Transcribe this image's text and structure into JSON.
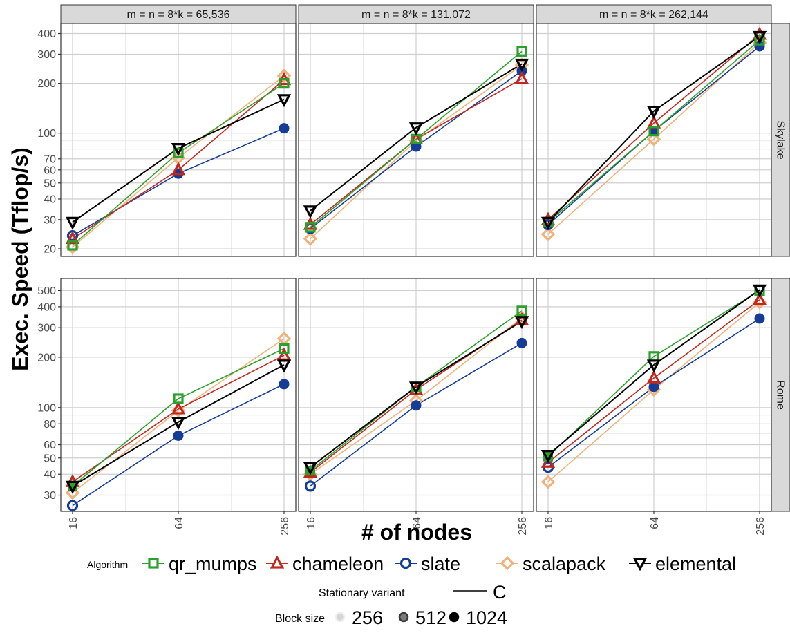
{
  "chart_data": {
    "type": "line",
    "ylabel": "Exec. Speed (Tflop/s)",
    "xlabel": "# of nodes",
    "x": [
      16,
      64,
      256
    ],
    "x_tick_labels": [
      "16",
      "64",
      "256"
    ],
    "x_scale": "log2",
    "y_scale": "log10",
    "grid": true,
    "legend_position": "bottom",
    "columns": [
      "m = n = 8*k =  65,536",
      "m = n = 8*k = 131,072",
      "m = n = 8*k = 262,144"
    ],
    "rows": [
      "Skylake",
      "Rome"
    ],
    "row_ylim": [
      [
        18,
        460
      ],
      [
        24,
        590
      ]
    ],
    "row_y_ticks": [
      {
        "values": [
          20,
          30,
          40,
          50,
          60,
          70,
          100,
          200,
          300,
          400
        ],
        "labels": [
          "20",
          "30",
          "40",
          "50",
          "60",
          "70",
          "100",
          "200",
          "300",
          "400"
        ]
      },
      {
        "values": [
          30,
          40,
          50,
          60,
          80,
          100,
          200,
          300,
          400,
          500
        ],
        "labels": [
          "30",
          "40",
          "50",
          "60",
          "80",
          "100",
          "200",
          "300",
          "400",
          "500"
        ]
      }
    ],
    "row_y_minor": [
      [
        80,
        90
      ],
      [
        70,
        90
      ]
    ],
    "series_styles": [
      {
        "name": "qr_mumps",
        "color": "#2ca02c",
        "marker": "square"
      },
      {
        "name": "chameleon",
        "color": "#c0281e",
        "marker": "triangle-up"
      },
      {
        "name": "slate",
        "color": "#153c96",
        "marker": "circle"
      },
      {
        "name": "scalapack",
        "color": "#f0b27a",
        "marker": "diamond"
      },
      {
        "name": "elemental",
        "color": "#000000",
        "marker": "triangle-down"
      }
    ],
    "panels": [
      {
        "row": 0,
        "col": 0,
        "series": [
          {
            "name": "qr_mumps",
            "values": [
              21,
              76,
              200
            ]
          },
          {
            "name": "chameleon",
            "values": [
              23,
              60,
              210
            ]
          },
          {
            "name": "slate",
            "values": [
              24,
              57,
              107
            ]
          },
          {
            "name": "scalapack",
            "values": [
              20.5,
              71,
              222
            ]
          },
          {
            "name": "elemental",
            "values": [
              29,
              81,
              160
            ]
          }
        ]
      },
      {
        "row": 0,
        "col": 1,
        "series": [
          {
            "name": "qr_mumps",
            "values": [
              27,
              92,
              312
            ]
          },
          {
            "name": "chameleon",
            "values": [
              28,
              92,
              213
            ]
          },
          {
            "name": "slate",
            "values": [
              26.5,
              83,
              238
            ]
          },
          {
            "name": "scalapack",
            "values": [
              23,
              90,
              258
            ]
          },
          {
            "name": "elemental",
            "values": [
              34,
              108,
              262
            ]
          }
        ]
      },
      {
        "row": 0,
        "col": 2,
        "series": [
          {
            "name": "qr_mumps",
            "values": [
              29,
              103,
              365
            ]
          },
          {
            "name": "chameleon",
            "values": [
              30,
              115,
              395
            ]
          },
          {
            "name": "slate",
            "values": [
              28,
              103,
              335
            ]
          },
          {
            "name": "scalapack",
            "values": [
              24.5,
              92,
              352
            ]
          },
          {
            "name": "elemental",
            "values": [
              29,
              136,
              385
            ]
          }
        ]
      },
      {
        "row": 1,
        "col": 0,
        "series": [
          {
            "name": "qr_mumps",
            "values": [
              34,
              113,
              225
            ]
          },
          {
            "name": "chameleon",
            "values": [
              36,
              98,
              205
            ]
          },
          {
            "name": "slate",
            "values": [
              26,
              68,
              138
            ]
          },
          {
            "name": "scalapack",
            "values": [
              31,
              96,
              258
            ]
          },
          {
            "name": "elemental",
            "values": [
              34,
              82,
              180
            ]
          }
        ]
      },
      {
        "row": 1,
        "col": 1,
        "series": [
          {
            "name": "qr_mumps",
            "values": [
              42,
              133,
              378
            ]
          },
          {
            "name": "chameleon",
            "values": [
              41,
              128,
              333
            ]
          },
          {
            "name": "slate",
            "values": [
              34,
              103,
              243
            ]
          },
          {
            "name": "scalapack",
            "values": [
              40,
              110,
              343
            ]
          },
          {
            "name": "elemental",
            "values": [
              44,
              133,
              328
            ]
          }
        ]
      },
      {
        "row": 1,
        "col": 2,
        "series": [
          {
            "name": "qr_mumps",
            "values": [
              51,
              202,
              500
            ]
          },
          {
            "name": "chameleon",
            "values": [
              47,
              150,
              440
            ]
          },
          {
            "name": "slate",
            "values": [
              44,
              133,
              340
            ]
          },
          {
            "name": "scalapack",
            "values": [
              36,
              128,
              425
            ]
          },
          {
            "name": "elemental",
            "values": [
              52,
              180,
              505
            ]
          }
        ]
      }
    ]
  },
  "legend": {
    "algorithm_title": "Algorithm",
    "algorithms": [
      "qr_mumps",
      "chameleon",
      "slate",
      "scalapack",
      "elemental"
    ],
    "variant_title": "Stationary variant",
    "variant_label": "C",
    "blocksize_title": "Block size",
    "blocksizes": [
      "256",
      "512",
      "1024"
    ]
  }
}
